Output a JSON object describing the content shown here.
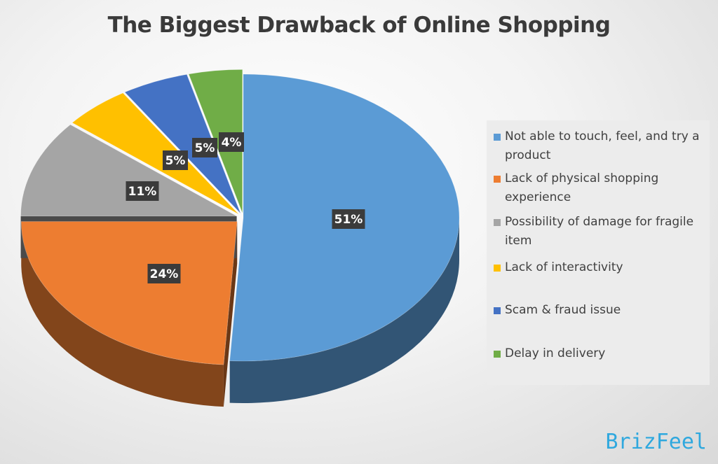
{
  "chart_data": {
    "type": "pie",
    "title": "The Biggest Drawback of Online Shopping",
    "categories": [
      "Not able to touch, feel, and try a product",
      "Lack of physical shopping experience",
      "Possibility of damage for fragile item",
      "Lack of interactivity",
      "Scam & fraud issue",
      "Delay in delivery"
    ],
    "values": [
      51,
      24,
      11,
      5,
      5,
      4
    ],
    "labels": [
      "51%",
      "24%",
      "11%",
      "5%",
      "5%",
      "4%"
    ],
    "colors": [
      "#5b9bd5",
      "#ed7d31",
      "#a5a5a5",
      "#ffc000",
      "#4472c4",
      "#70ad47"
    ],
    "style": "3d-exploded",
    "legend_position": "right"
  },
  "watermark": "BrizFeel"
}
